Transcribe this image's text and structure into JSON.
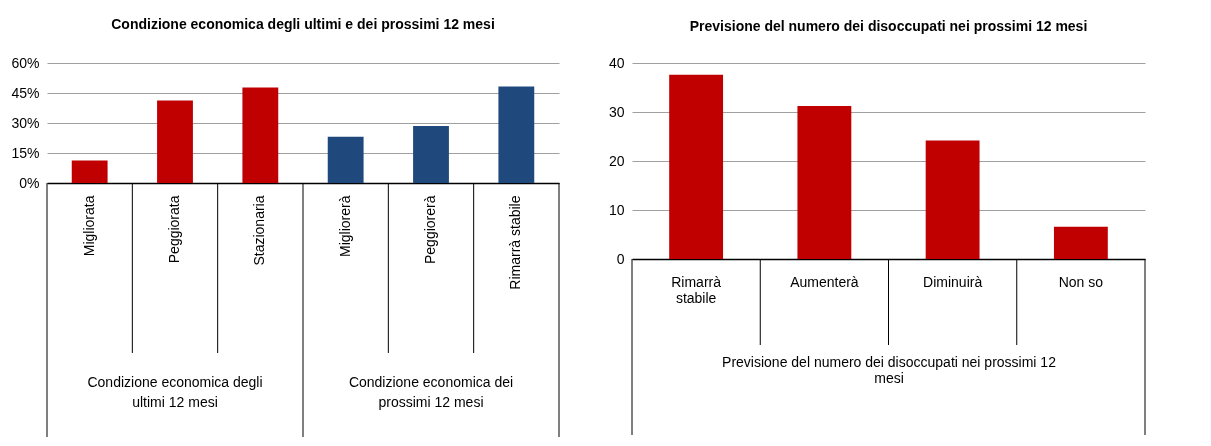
{
  "chart_data": [
    {
      "type": "bar",
      "title": "Condizione economica degli ultimi e dei prossimi 12 mesi",
      "categories": [
        "Migliorata",
        "Peggiorata",
        "Stazionaria",
        "Migliorerà",
        "Peggiorerà",
        "Rimarrà stabile"
      ],
      "values": [
        11.2,
        41.3,
        47.7,
        23.1,
        28.5,
        48.3
      ],
      "colors": [
        "#c00000",
        "#c00000",
        "#c00000",
        "#1f497d",
        "#1f497d",
        "#1f497d"
      ],
      "annotations": [
        "Condizione economica degli ultimi 12 mesi",
        "Condizione economica dei prossimi 12 mesi"
      ],
      "ylim": [
        0,
        60
      ],
      "yticks": [
        {
          "value": 0,
          "label": "0%"
        },
        {
          "value": 15,
          "label": "15%"
        },
        {
          "value": 30,
          "label": "30%"
        },
        {
          "value": 45,
          "label": "45%"
        },
        {
          "value": 60,
          "label": "60%"
        }
      ],
      "grid": "y"
    },
    {
      "type": "bar",
      "title": "Previsione del numero dei disoccupati nei prossimi 12 mesi",
      "xlabel": "Previsione del  numero dei disoccupati nei prossimi 12 mesi",
      "categories": [
        "Rimarrà stabile",
        "Aumenterà",
        "Diminuirà",
        "Non so"
      ],
      "values": [
        37.6,
        31.2,
        24.2,
        6.6
      ],
      "color": "#c00000",
      "ylim": [
        0,
        40
      ],
      "yticks": [
        0,
        10,
        20,
        30,
        40
      ],
      "grid": "y"
    }
  ]
}
